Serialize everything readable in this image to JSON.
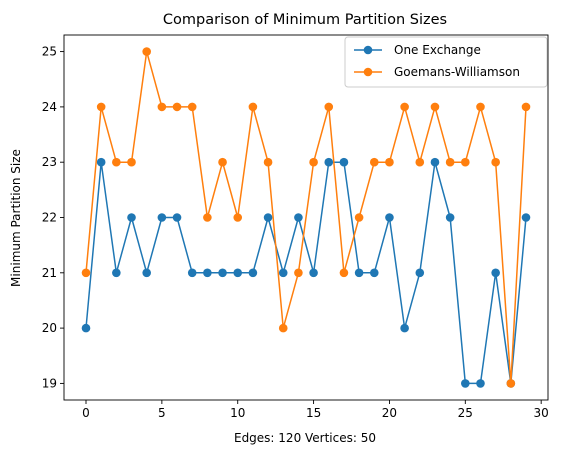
{
  "chart_data": {
    "type": "line",
    "title": "Comparison of Minimum Partition Sizes",
    "xlabel": "Edges: 120 Vertices: 50",
    "ylabel": "Minimum Partition Size",
    "xlim": [
      -1.45,
      30.45
    ],
    "ylim": [
      18.7,
      25.3
    ],
    "xticks": [
      0,
      5,
      10,
      15,
      20,
      25,
      30
    ],
    "yticks": [
      19,
      20,
      21,
      22,
      23,
      24,
      25
    ],
    "grid": false,
    "legend": "top-right",
    "x": [
      0,
      1,
      2,
      3,
      4,
      5,
      6,
      7,
      8,
      9,
      10,
      11,
      12,
      13,
      14,
      15,
      16,
      17,
      18,
      19,
      20,
      21,
      22,
      23,
      24,
      25,
      26,
      27,
      28,
      29
    ],
    "series": [
      {
        "name": "One Exchange",
        "color": "#1f77b4",
        "values": [
          20,
          23,
          21,
          22,
          21,
          22,
          22,
          21,
          21,
          21,
          21,
          21,
          22,
          21,
          22,
          21,
          23,
          23,
          21,
          21,
          22,
          20,
          21,
          23,
          22,
          19,
          19,
          21,
          19,
          22
        ]
      },
      {
        "name": "Goemans-Williamson",
        "color": "#ff7f0e",
        "values": [
          21,
          24,
          23,
          23,
          25,
          24,
          24,
          24,
          22,
          23,
          22,
          24,
          23,
          20,
          21,
          23,
          24,
          21,
          22,
          23,
          23,
          24,
          23,
          24,
          23,
          23,
          24,
          23,
          19,
          24
        ]
      }
    ]
  }
}
